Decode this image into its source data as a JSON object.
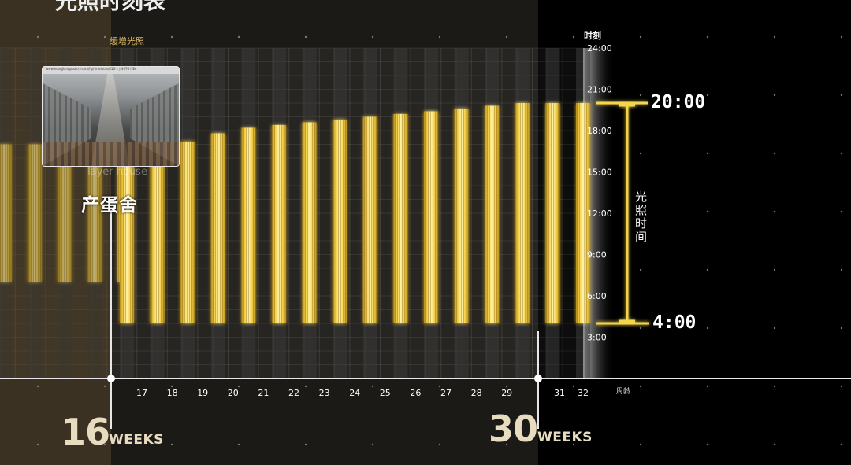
{
  "top_title": "光照时刻表",
  "phase_label": "缓增光照",
  "house_label": "产蛋舍",
  "house_sub": "layer house",
  "thumbnail": {
    "caption": "www.hongjiangpoultry.com/hy/products/h16-1 | 4076 h3k"
  },
  "milestones": [
    {
      "number": "16",
      "unit": "WEEKS"
    },
    {
      "number": "30",
      "unit": "WEEKS"
    }
  ],
  "annotations": {
    "light_end": "20:00",
    "light_start": "4:00",
    "duration_label": "光照时间"
  },
  "colors": {
    "light_bar": "#f5d14a",
    "light_bar_core": "#fff2a8",
    "dark_bar": "#3a3a3a",
    "bracket": "#f4d54c",
    "grid_dot": "#777777"
  },
  "chart_data": {
    "type": "bar",
    "title": "光照时刻表",
    "xlabel": "周龄",
    "ylabel": "时刻",
    "x_ticks": [
      "17",
      "18",
      "19",
      "20",
      "21",
      "22",
      "23",
      "24",
      "25",
      "26",
      "27",
      "28",
      "29",
      "31",
      "32"
    ],
    "y_ticks": [
      "24:00",
      "21:00",
      "18:00",
      "15:00",
      "12:00",
      "9:00",
      "6:00",
      "3:00"
    ],
    "ylim_hours": [
      1.5,
      24
    ],
    "series": [
      {
        "weeks": [
          11,
          12,
          13,
          14,
          15
        ],
        "light_start_hours": [
          7,
          7,
          7,
          7,
          7
        ],
        "light_end_hours": [
          17,
          17,
          17,
          17,
          17
        ]
      },
      {
        "weeks": [
          16,
          17,
          18,
          19,
          20,
          21,
          22,
          23,
          24,
          25,
          26,
          27,
          28,
          29,
          30,
          31
        ],
        "light_start_hours": [
          4,
          4,
          4,
          4,
          4,
          4,
          4,
          4,
          4,
          4,
          4,
          4,
          4,
          4,
          4,
          4
        ],
        "light_end_hours": [
          16,
          16.5,
          17.2,
          17.8,
          18.2,
          18.4,
          18.6,
          18.8,
          19,
          19.2,
          19.4,
          19.6,
          19.8,
          20,
          20,
          20
        ]
      }
    ],
    "annotated_range_hours": [
      4,
      20
    ],
    "milestone_weeks": [
      16,
      30
    ],
    "grid": true
  }
}
